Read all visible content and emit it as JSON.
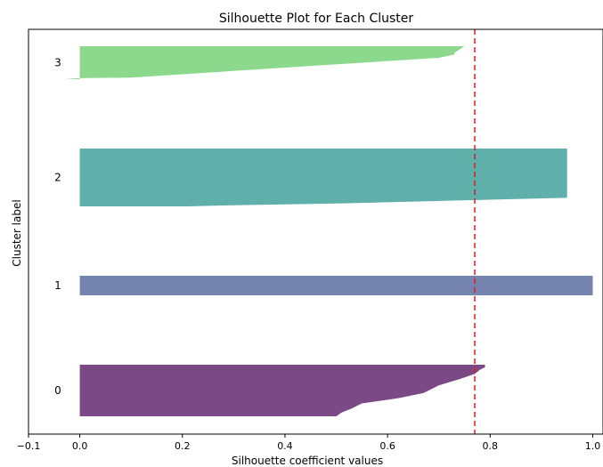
{
  "chart_data": {
    "type": "area",
    "title": "Silhouette Plot for Each Cluster",
    "xlabel": "Silhouette coefficient values",
    "ylabel": "Cluster label",
    "xlim": [
      -0.1,
      1.02
    ],
    "xticks": [
      -0.1,
      0.0,
      0.2,
      0.4,
      0.6,
      0.8,
      1.0
    ],
    "xtick_labels": [
      "−0.1",
      "0.0",
      "0.2",
      "0.4",
      "0.6",
      "0.8",
      "1.0"
    ],
    "grid": false,
    "average_silhouette": 0.77,
    "average_line_color": "#e31a1c",
    "clusters": [
      {
        "label": "0",
        "color": "#7b4a86",
        "profile": [
          [
            0.0,
            0.79
          ],
          [
            0.05,
            0.79
          ],
          [
            0.1,
            0.78
          ],
          [
            0.18,
            0.77
          ],
          [
            0.28,
            0.74
          ],
          [
            0.4,
            0.7
          ],
          [
            0.55,
            0.67
          ],
          [
            0.65,
            0.62
          ],
          [
            0.75,
            0.55
          ],
          [
            0.85,
            0.53
          ],
          [
            0.93,
            0.51
          ],
          [
            1.0,
            0.5
          ]
        ]
      },
      {
        "label": "1",
        "color": "#7584ae",
        "profile": [
          [
            0.0,
            1.0
          ],
          [
            1.0,
            1.0
          ]
        ]
      },
      {
        "label": "2",
        "color": "#5fafab",
        "profile": [
          [
            0.0,
            0.95
          ],
          [
            0.3,
            0.95
          ],
          [
            0.6,
            0.95
          ],
          [
            0.85,
            0.95
          ],
          [
            0.95,
            0.5
          ],
          [
            0.98,
            0.3
          ],
          [
            1.0,
            0.21
          ]
        ]
      },
      {
        "label": "3",
        "color": "#8cd88d",
        "profile": [
          [
            0.0,
            0.75
          ],
          [
            0.1,
            0.74
          ],
          [
            0.2,
            0.73
          ],
          [
            0.25,
            0.73
          ],
          [
            0.35,
            0.7
          ],
          [
            0.5,
            0.55
          ],
          [
            0.7,
            0.35
          ],
          [
            0.85,
            0.2
          ],
          [
            0.95,
            0.1
          ],
          [
            0.97,
            0.0
          ],
          [
            1.0,
            -0.03
          ]
        ]
      }
    ]
  }
}
